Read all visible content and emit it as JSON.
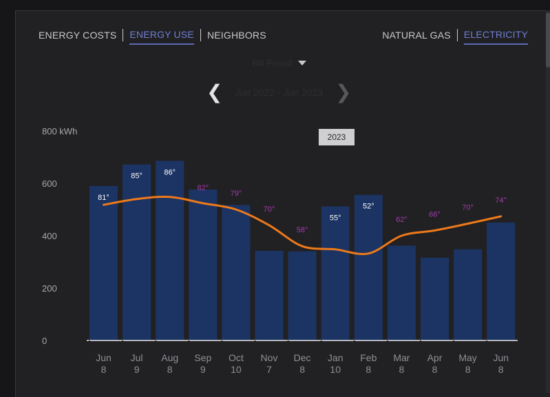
{
  "tabs_left": [
    {
      "label": "ENERGY COSTS",
      "active": false
    },
    {
      "label": "ENERGY USE",
      "active": true
    },
    {
      "label": "NEIGHBORS",
      "active": false
    }
  ],
  "tabs_right": [
    {
      "label": "NATURAL GAS",
      "active": false
    },
    {
      "label": "ELECTRICITY",
      "active": true
    }
  ],
  "dropdown": {
    "value": "Bill Period"
  },
  "date_nav": {
    "range": "Jun 2022 - Jun 2023"
  },
  "year_badge": "2023",
  "colors": {
    "bar": "#1c3463",
    "line": "#ef7a1a",
    "temp_hot": "#a23aa8",
    "temp_cold": "#ffffff",
    "accent": "#6f7fd0"
  },
  "chart_data": {
    "type": "bar",
    "ylabel": "kWh",
    "ylim": [
      0,
      800
    ],
    "yticks": [
      {
        "value": 800,
        "label": "800 kWh"
      },
      {
        "value": 600,
        "label": "600"
      },
      {
        "value": 400,
        "label": "400"
      },
      {
        "value": 200,
        "label": "200"
      },
      {
        "value": 0,
        "label": "0"
      }
    ],
    "categories": [
      {
        "month": "Jun",
        "day": "8"
      },
      {
        "month": "Jul",
        "day": "9"
      },
      {
        "month": "Aug",
        "day": "8"
      },
      {
        "month": "Sep",
        "day": "9"
      },
      {
        "month": "Oct",
        "day": "10"
      },
      {
        "month": "Nov",
        "day": "7"
      },
      {
        "month": "Dec",
        "day": "8"
      },
      {
        "month": "Jan",
        "day": "10"
      },
      {
        "month": "Feb",
        "day": "8"
      },
      {
        "month": "Mar",
        "day": "8"
      },
      {
        "month": "Apr",
        "day": "8"
      },
      {
        "month": "May",
        "day": "8"
      },
      {
        "month": "Jun",
        "day": "8"
      }
    ],
    "values": [
      590,
      672,
      686,
      576,
      517,
      342,
      340,
      512,
      556,
      362,
      316,
      348,
      450
    ],
    "temperatures": [
      "81°",
      "85°",
      "86°",
      "82°",
      "79°",
      "70°",
      "58°",
      "55°",
      "52°",
      "62°",
      "66°",
      "70°",
      "74°"
    ],
    "temperature_colors": [
      "cold",
      "cold",
      "cold",
      "hot",
      "hot",
      "hot",
      "hot",
      "cold",
      "cold",
      "hot",
      "hot",
      "hot",
      "hot"
    ],
    "trend_values": [
      518,
      540,
      548,
      524,
      500,
      440,
      360,
      348,
      332,
      400,
      420,
      446,
      474
    ]
  }
}
